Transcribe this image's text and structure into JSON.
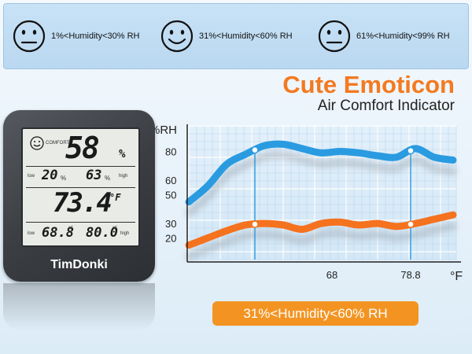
{
  "emoticon_bar": {
    "items": [
      {
        "face": "sad-face-icon",
        "label": "1%<Humidity<30% RH"
      },
      {
        "face": "smile-face-icon",
        "label": "31%<Humidity<60% RH"
      },
      {
        "face": "sad-face-icon",
        "label": "61%<Humidity<99% RH"
      }
    ]
  },
  "heading": {
    "title": "Cute Emoticon",
    "subtitle": "Air Comfort Indicator"
  },
  "device": {
    "comfort_label": "COMFORT",
    "main_humidity": "58",
    "main_humidity_unit": "%",
    "low_label": "low",
    "high_label": "high",
    "low_humidity": "20",
    "low_humidity_unit": "%",
    "high_humidity": "63",
    "high_humidity_unit": "%",
    "temperature": "73.4",
    "temp_unit": "°F",
    "low_temp": "68.8",
    "low_temp_unit": "°F",
    "high_temp": "80.0",
    "high_temp_unit": "°F",
    "brand": "TimDonki"
  },
  "chart_data": {
    "type": "line",
    "ylabel": "%RH",
    "xlabel": "°F",
    "yticks": [
      "80",
      "60",
      "50",
      "30",
      "20"
    ],
    "xticks": [
      "68",
      "78.8"
    ],
    "series": [
      {
        "color": "#2a9be0",
        "points": [
          [
            0,
            45
          ],
          [
            4,
            56
          ],
          [
            8,
            71
          ],
          [
            12,
            78
          ],
          [
            16,
            84
          ],
          [
            20,
            85
          ],
          [
            24,
            82
          ],
          [
            28,
            79
          ],
          [
            32,
            80
          ],
          [
            36,
            79
          ],
          [
            40,
            77
          ],
          [
            44,
            76
          ],
          [
            48,
            82
          ],
          [
            52,
            76
          ],
          [
            56,
            74
          ]
        ]
      },
      {
        "color": "#f5721e",
        "points": [
          [
            0,
            15
          ],
          [
            4,
            20
          ],
          [
            8,
            25
          ],
          [
            12,
            29
          ],
          [
            16,
            30
          ],
          [
            20,
            29
          ],
          [
            24,
            26
          ],
          [
            28,
            30
          ],
          [
            32,
            31
          ],
          [
            36,
            29
          ],
          [
            40,
            30
          ],
          [
            44,
            28
          ],
          [
            48,
            30
          ],
          [
            52,
            33
          ],
          [
            56,
            36
          ]
        ]
      }
    ],
    "markers": [
      {
        "series": 0,
        "x": "68"
      },
      {
        "series": 1,
        "x": "68"
      },
      {
        "series": 0,
        "x": "78.8"
      },
      {
        "series": 1,
        "x": "78.8"
      }
    ],
    "grid": true
  },
  "comfort_pill": {
    "label": "31%<Humidity<60% RH"
  }
}
